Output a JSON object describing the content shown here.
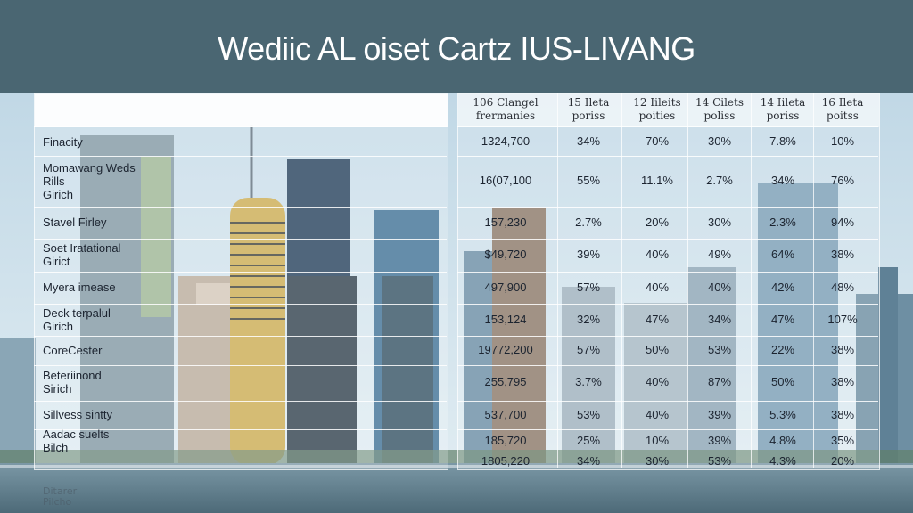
{
  "colors": {
    "banner": "#4a6672",
    "sky": "#c9dbe6",
    "text": "#1c2430"
  },
  "chart_data": {
    "type": "table",
    "title": "Wediic AL oiset Cartz IUS-LIVANG",
    "columns": [
      "106 Clangel\nfrermanies",
      "15 Ileta\nporiss",
      "12 Iileits\npoities",
      "14 Cilets\npoliss",
      "14 Iileta\nporiss",
      "16 Ileta\npoitss"
    ],
    "rows": [
      {
        "label": "Finacity",
        "values": [
          "1324,700",
          "34%",
          "70%",
          "30%",
          "7.8%",
          "10%"
        ]
      },
      {
        "label": "Momawang Weds\nRills\nGirich",
        "values": [
          "16(07,100",
          "55%",
          "11.1%",
          "2.7%",
          "34%",
          "76%"
        ]
      },
      {
        "label": "Stavel Firley",
        "values": [
          "157,230",
          "2.7%",
          "20%",
          "30%",
          "2.3%",
          "94%"
        ]
      },
      {
        "label": "Soet Iratational\nGirict",
        "values": [
          "$49,720",
          "39%",
          "40%",
          "49%",
          "64%",
          "38%"
        ]
      },
      {
        "label": "Myera imease",
        "values": [
          "497,900",
          "57%",
          "40%",
          "40%",
          "42%",
          "48%"
        ]
      },
      {
        "label": "Deck terpalul\nGirich",
        "values": [
          "153,124",
          "32%",
          "47%",
          "34%",
          "47%",
          "107%"
        ]
      },
      {
        "label": "CoreCester",
        "values": [
          "19772,200",
          "57%",
          "50%",
          "53%",
          "22%",
          "38%"
        ]
      },
      {
        "label": "Beteriinond\nSirich",
        "values": [
          "255,795",
          "3.7%",
          "40%",
          "87%",
          "50%",
          "38%"
        ]
      },
      {
        "label": "Sillvess sintty",
        "values": [
          "537,700",
          "53%",
          "40%",
          "39%",
          "5.3%",
          "38%"
        ]
      },
      {
        "label": "Aadac suelts\nBilch",
        "values": [
          "185,720",
          "25%",
          "10%",
          "39%",
          "4.8%",
          "35%"
        ]
      },
      {
        "label": "",
        "values": [
          "1805,220",
          "34%",
          "30%",
          "53%",
          "4.3%",
          "20%"
        ]
      }
    ],
    "footer_label": "Ditarer\nPilcho"
  }
}
